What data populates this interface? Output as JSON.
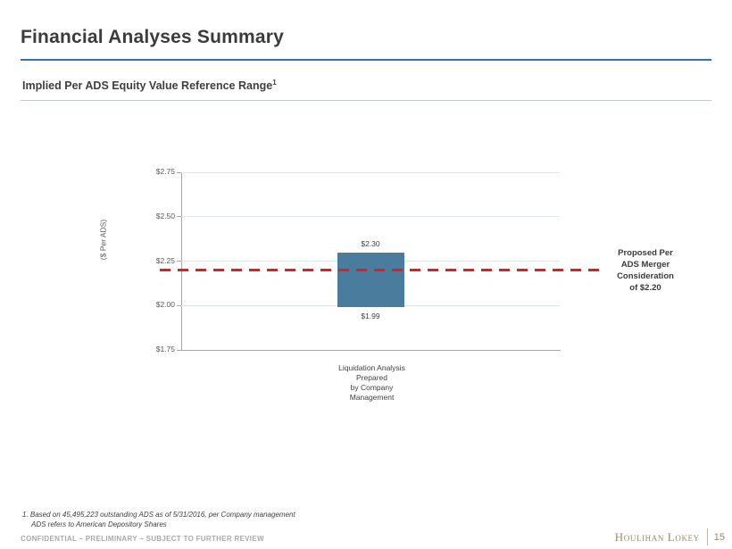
{
  "header": {
    "title": "Financial Analyses Summary",
    "subtitle": "Implied Per ADS Equity Value Reference Range",
    "subtitle_superscript": "1"
  },
  "colors": {
    "accent_blue": "#2e74b5",
    "bar_fill": "#4a7c9d",
    "reference_line_red": "#e8191f",
    "brand_gold": "#9c8a63"
  },
  "chart_data": {
    "type": "bar",
    "subtype": "floating-range-bar",
    "title": "",
    "xlabel": "",
    "ylabel": "($ Per ADS)",
    "ylim": [
      1.75,
      2.75
    ],
    "grid": true,
    "yticks": [
      {
        "value": 2.75,
        "label": "$2.75"
      },
      {
        "value": 2.5,
        "label": "$2.50"
      },
      {
        "value": 2.25,
        "label": "$2.25"
      },
      {
        "value": 2.0,
        "label": "$2.00"
      },
      {
        "value": 1.75,
        "label": "$1.75"
      }
    ],
    "categories": [
      "Liquidation Analysis\nPrepared\nby Company\nManagement"
    ],
    "series": [
      {
        "name": "Implied Per ADS Equity Value Reference Range",
        "low": 1.99,
        "high": 2.3,
        "low_label": "$1.99",
        "high_label": "$2.30",
        "color": "#4a7c9d"
      }
    ],
    "reference_line": {
      "value": 2.2,
      "style": "dashed",
      "color": "#e8191f",
      "label": "Proposed Per\nADS Merger\nConsideration\nof $2.20"
    },
    "legend": "none"
  },
  "footnotes": [
    "1. Based on 45,495,223 outstanding ADS as of 5/31/2016, per Company management",
    "ADS refers to American Depository Shares"
  ],
  "footer": {
    "confidential": "CONFIDENTIAL – PRELIMINARY – SUBJECT TO FURTHER REVIEW",
    "brand": "Houlihan Lokey",
    "page_number": "15"
  }
}
